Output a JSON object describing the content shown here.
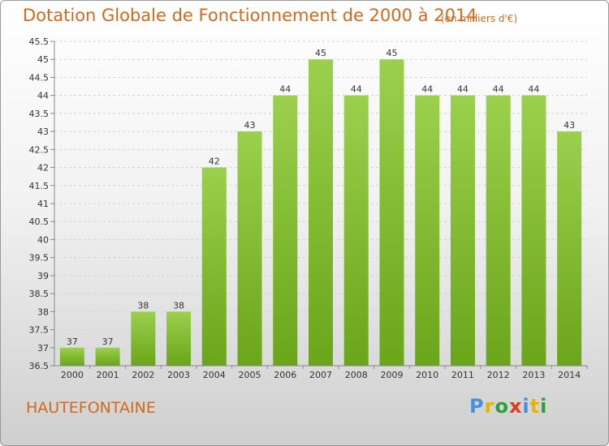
{
  "title": "Dotation Globale de Fonctionnement de 2000 à 2014",
  "unit": "(en milliers d'€)",
  "commune": "HAUTEFONTAINE",
  "logo": "Proxiti",
  "colors": {
    "bar_top": "#9bd04d",
    "bar_bottom": "#6aa51a",
    "title": "#d2691e"
  },
  "chart_data": {
    "type": "bar",
    "title": "Dotation Globale de Fonctionnement de 2000 à 2014",
    "subtitle": "(en milliers d'€)",
    "categories": [
      "2000",
      "2001",
      "2002",
      "2003",
      "2004",
      "2005",
      "2006",
      "2007",
      "2008",
      "2009",
      "2010",
      "2011",
      "2012",
      "2013",
      "2014"
    ],
    "values": [
      37,
      37,
      38,
      38,
      42,
      43,
      44,
      45,
      44,
      45,
      44,
      44,
      44,
      44,
      43
    ],
    "ylim": [
      36.5,
      45.5
    ],
    "yticks": [
      "36.5",
      "37",
      "37.5",
      "38",
      "38.5",
      "39",
      "39.5",
      "40",
      "40.5",
      "41",
      "41.5",
      "42",
      "42.5",
      "43",
      "43.5",
      "44",
      "44.5",
      "45",
      "45.5"
    ],
    "grid": true,
    "legend": "none"
  }
}
